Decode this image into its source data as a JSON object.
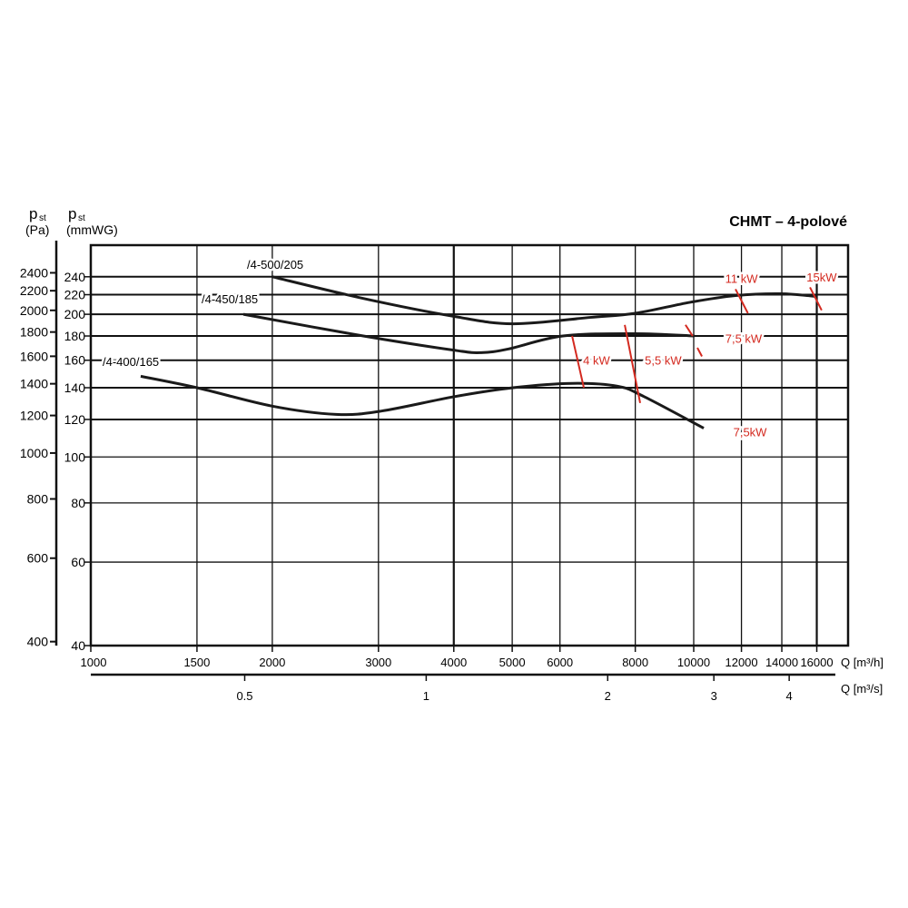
{
  "chart_data": {
    "type": "line",
    "title": "CHMT – 4-polové",
    "x_scale": "log",
    "y_scale": "log",
    "xlabel": "Q [m³/h]",
    "xlabel2": "Q [m³/s]",
    "ylabel_pa": {
      "symbol": "p",
      "sub": "st",
      "unit": "(Pa)"
    },
    "ylabel_mm": {
      "symbol": "p",
      "sub": "st",
      "unit": "(mmWG)"
    },
    "xlim": [
      1000,
      18000
    ],
    "ylim_mmwg": [
      40,
      280
    ],
    "x_ticks": [
      1000,
      1500,
      2000,
      3000,
      4000,
      5000,
      6000,
      8000,
      10000,
      12000,
      14000,
      16000
    ],
    "x2_ticks": [
      "0.5",
      "1",
      "2",
      "3",
      "4"
    ],
    "y_ticks_mmwg": [
      40,
      60,
      80,
      100,
      120,
      140,
      160,
      180,
      200,
      220,
      240
    ],
    "y_ticks_pa": [
      400,
      600,
      800,
      1000,
      1200,
      1400,
      1600,
      1800,
      2000,
      2200,
      2400
    ],
    "grid": true,
    "colors": {
      "curve": "#1a1a1a",
      "power": "#d42a20"
    },
    "series": [
      {
        "name": "/4-500/205",
        "x": [
          2000,
          2831,
          4000,
          5013,
          6734,
          8000,
          9860,
          11730,
          13950,
          16030
        ],
        "y": [
          240,
          216,
          198,
          191,
          197,
          201,
          212,
          219,
          221,
          218
        ]
      },
      {
        "name": "/4-450/185",
        "x": [
          1791,
          2831,
          4000,
          4443,
          4930,
          6070,
          8000,
          10030
        ],
        "y": [
          200,
          180,
          168,
          166,
          169,
          180,
          182,
          180
        ]
      },
      {
        "name": "/4-400/165",
        "x": [
          1210,
          1500,
          2000,
          2551,
          3034,
          4000,
          5013,
          6285,
          7475,
          8280,
          10390
        ],
        "y": [
          148,
          140,
          128,
          123,
          125,
          134,
          140,
          143,
          141,
          134,
          115
        ]
      }
    ],
    "power_lines": [
      {
        "label": "4 kW",
        "segments": [
          [
            [
              6285,
              180
            ],
            [
              6573,
              140
            ]
          ]
        ],
        "label_at": [
          6900,
          160
        ]
      },
      {
        "label": "5,5 kW",
        "segments": [
          [
            [
              7685,
              190
            ],
            [
              8150,
              130
            ]
          ]
        ],
        "label_at": [
          8900,
          160
        ]
      },
      {
        "label": "7,5 kW",
        "segments": [
          [
            [
              9690,
              190
            ],
            [
              9960,
              180
            ]
          ],
          [
            [
              10140,
              170
            ],
            [
              10320,
              163
            ]
          ]
        ],
        "label_at": [
          12100,
          178
        ]
      },
      {
        "label": "11 kW",
        "segments": [
          [
            [
              11730,
              226
            ],
            [
              12300,
              201
            ]
          ]
        ],
        "label_at": [
          12000,
          238
        ]
      },
      {
        "label": "15kW",
        "segments": [
          [
            [
              15590,
              228
            ],
            [
              16300,
              204
            ]
          ]
        ],
        "label_at": [
          16300,
          240
        ]
      },
      {
        "label": "7,5kW",
        "segments": [],
        "label_at": [
          12400,
          113
        ]
      }
    ]
  }
}
